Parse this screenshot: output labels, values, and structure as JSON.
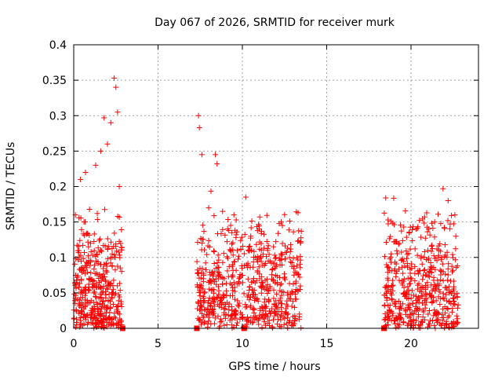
{
  "chart_data": {
    "type": "scatter",
    "title": "Day 067 of 2026, SRMTID for receiver murk",
    "xlabel": "GPS time / hours",
    "ylabel": "SRMTID / TECUs",
    "xlim": [
      0,
      24
    ],
    "ylim": [
      0,
      0.4
    ],
    "xticks": [
      "0",
      "5",
      "10",
      "15",
      "20"
    ],
    "yticks": [
      "0",
      "0.05",
      "0.1",
      "0.15",
      "0.2",
      "0.25",
      "0.3",
      "0.35",
      "0.4"
    ],
    "grid": true,
    "marker": "plus",
    "color": "#ff0000",
    "series": [
      {
        "name": "SRMTID",
        "segments": [
          {
            "start": 0.0,
            "end": 2.85,
            "count": 420
          },
          {
            "start": 7.3,
            "end": 13.5,
            "count": 650
          },
          {
            "start": 18.4,
            "end": 22.8,
            "count": 500
          }
        ],
        "x": [
          0.1,
          0.4,
          0.7,
          1.0,
          1.3,
          1.6,
          1.8,
          2.0,
          2.2,
          2.4,
          2.5,
          2.6,
          2.7,
          7.4,
          7.45,
          7.6,
          8.0,
          8.4,
          8.5,
          9.5,
          10.2,
          10.5,
          11.0,
          11.5,
          12.3,
          12.8,
          13.3,
          18.5,
          19.3,
          20.3,
          21.0,
          21.4,
          21.9,
          22.2,
          22.6
        ],
        "y": [
          0.16,
          0.21,
          0.22,
          0.12,
          0.23,
          0.25,
          0.297,
          0.26,
          0.29,
          0.353,
          0.34,
          0.305,
          0.2,
          0.3,
          0.283,
          0.245,
          0.17,
          0.245,
          0.232,
          0.16,
          0.185,
          0.13,
          0.14,
          0.11,
          0.15,
          0.1,
          0.163,
          0.184,
          0.12,
          0.14,
          0.11,
          0.15,
          0.197,
          0.18,
          0.16
        ]
      }
    ],
    "gap_markers_x": [
      2.9,
      7.3,
      10.1,
      18.4
    ]
  }
}
